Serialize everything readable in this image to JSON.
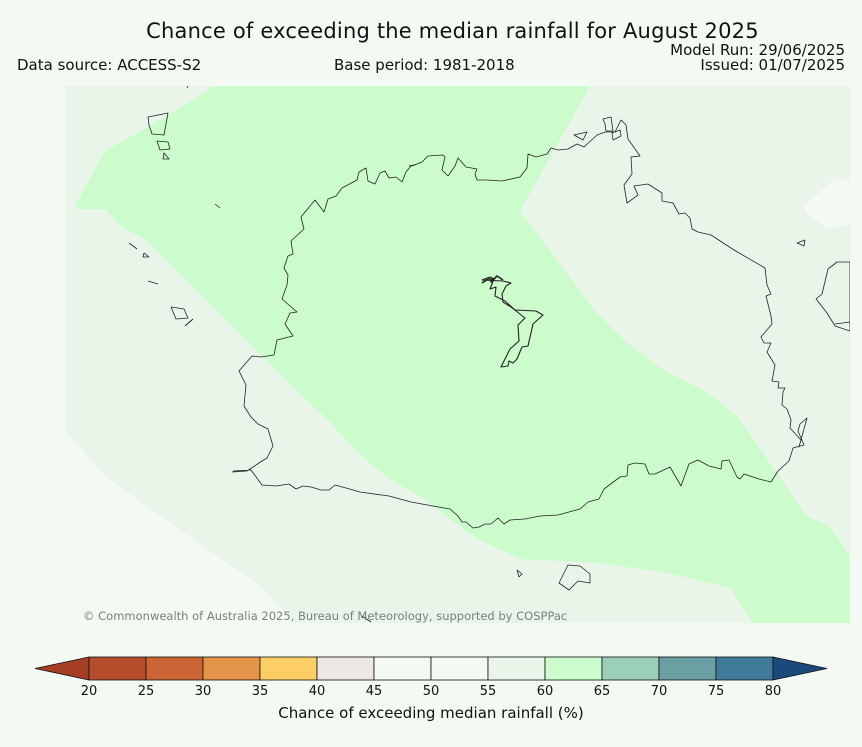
{
  "title": "Chance of exceeding the median rainfall for August 2025",
  "data_source": "Data source: ACCESS-S2",
  "base_period": "Base period: 1981-2018",
  "model_run": "Model Run: 29/06/2025",
  "issued": "Issued: 01/07/2025",
  "copyright": "© Commonwealth of Australia 2025, Bureau of Meteorology, supported by COSPPac",
  "colorbar": {
    "label": "Chance of exceeding median rainfall (%)",
    "ticks": [
      "20",
      "25",
      "30",
      "35",
      "40",
      "45",
      "50",
      "55",
      "60",
      "65",
      "70",
      "75",
      "80"
    ],
    "colors": [
      "#a63e26",
      "#b44d2c",
      "#cc6535",
      "#e4954a",
      "#fdcd66",
      "#ebe8e3",
      "#f4f9f4",
      "#f4f9f4",
      "#e9f5e9",
      "#ccfccc",
      "#9ccfb8",
      "#6a9fa4",
      "#3f7a9b",
      "#1a4a7c"
    ]
  },
  "map_colors": {
    "band_55_60": "#e9f5e9",
    "band_60_65": "#ccfccc",
    "band_50_55": "#f4f9f4",
    "coastline": "#222222"
  }
}
